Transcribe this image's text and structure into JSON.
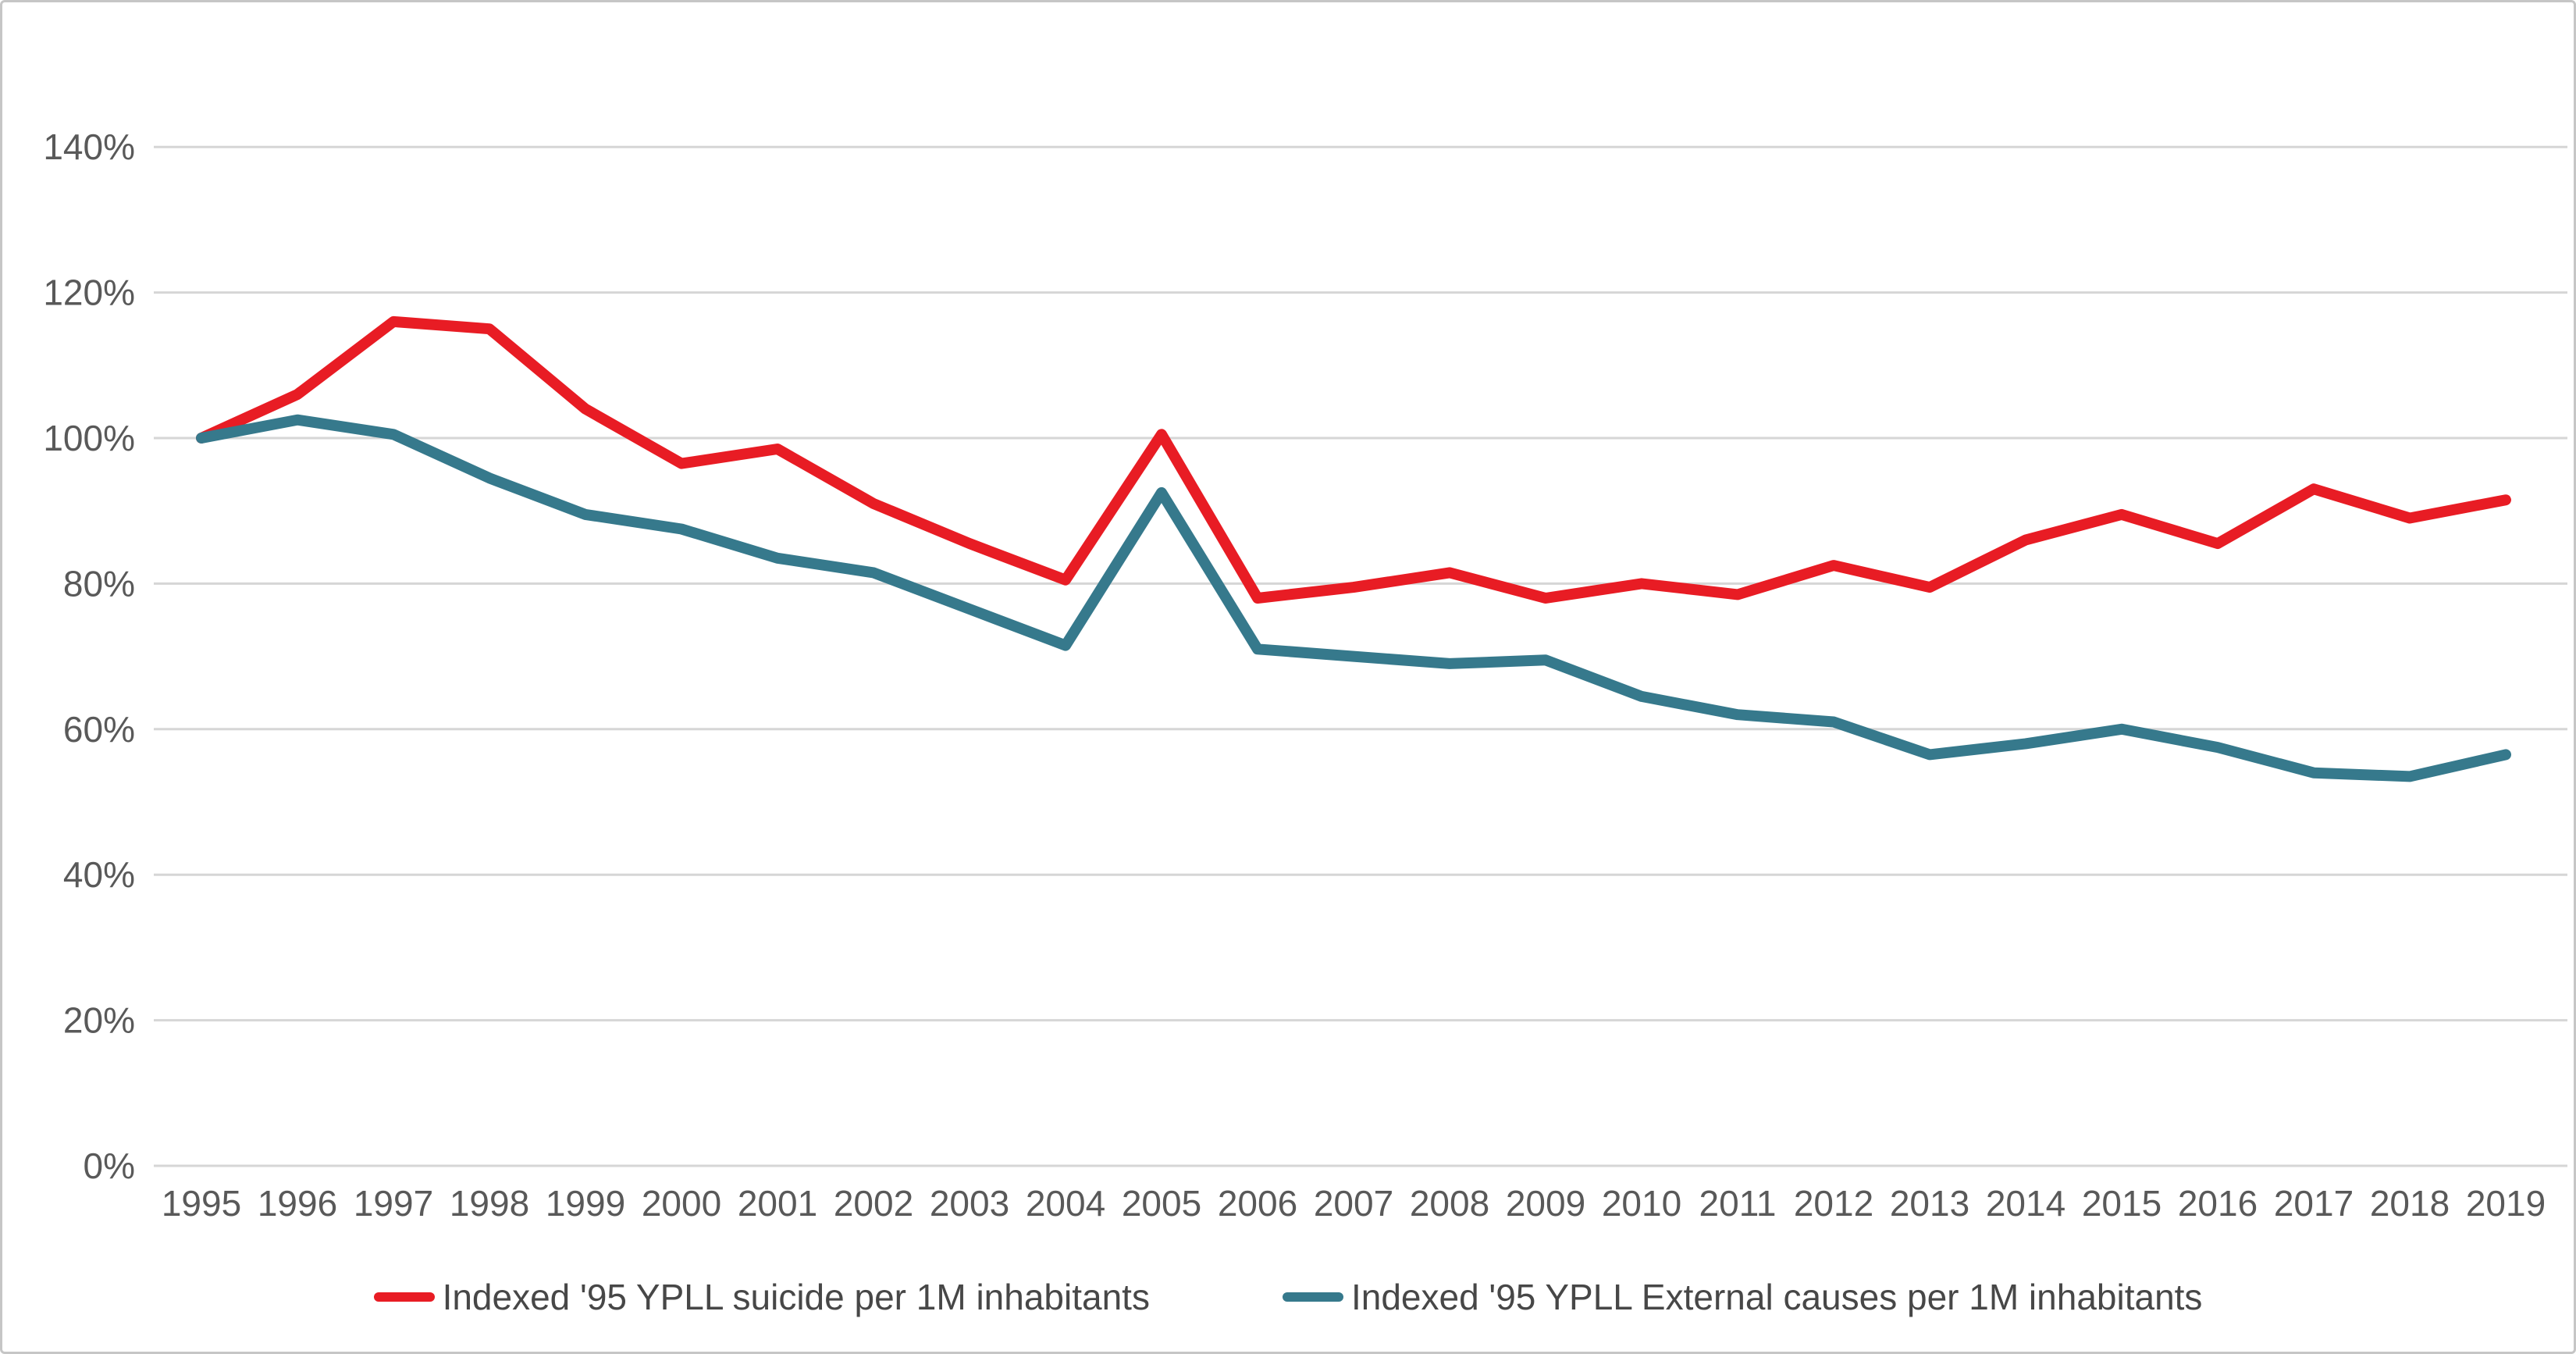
{
  "chart_data": {
    "type": "line",
    "title": "",
    "xlabel": "",
    "ylabel": "",
    "x": [
      1995,
      1996,
      1997,
      1998,
      1999,
      2000,
      2001,
      2002,
      2003,
      2004,
      2005,
      2006,
      2007,
      2008,
      2009,
      2010,
      2011,
      2012,
      2013,
      2014,
      2015,
      2016,
      2017,
      2018,
      2019
    ],
    "series": [
      {
        "name": "Indexed '95 YPLL suicide per 1M inhabitants",
        "color": "#e81c24",
        "values": [
          100,
          106,
          116,
          115,
          104,
          96.5,
          98.5,
          91,
          85.5,
          80.5,
          100.5,
          78,
          79.5,
          81.5,
          78,
          80,
          78.5,
          82.5,
          79.5,
          86,
          89.5,
          85.5,
          93,
          89,
          91.5
        ]
      },
      {
        "name": "Indexed '95 YPLL External causes per 1M inhabitants",
        "color": "#36798c",
        "values": [
          100,
          102.5,
          100.5,
          94.5,
          89.5,
          87.5,
          83.5,
          81.5,
          76.5,
          71.5,
          92.5,
          71,
          70,
          69,
          69.5,
          64.5,
          62,
          61,
          56.5,
          58,
          60,
          57.5,
          54,
          53.5,
          56.5
        ]
      }
    ],
    "ylim": [
      0,
      140
    ],
    "yticks": [
      0,
      20,
      40,
      60,
      80,
      100,
      120,
      140
    ],
    "ytick_labels": [
      "0%",
      "20%",
      "40%",
      "60%",
      "80%",
      "100%",
      "120%",
      "140%"
    ],
    "grid": true,
    "legend_position": "bottom"
  },
  "colors": {
    "background": "#ffffff",
    "border": "#c6c6c6",
    "gridline": "#d6d6d6",
    "tick_text": "#595959",
    "legend_text": "#474747"
  }
}
